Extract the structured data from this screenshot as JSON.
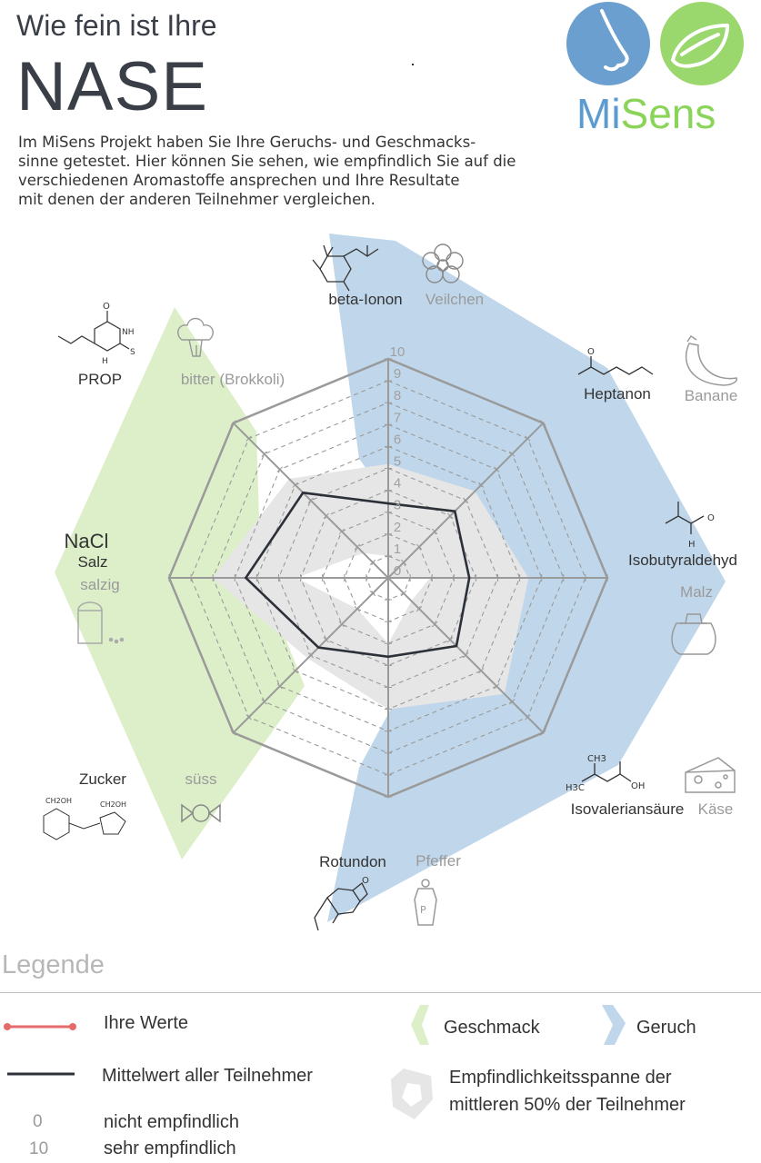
{
  "header": {
    "title_small": "Wie fein ist Ihre",
    "title_big": "NASE",
    "intro_lines": [
      "Im MiSens Projekt haben Sie Ihre Geruchs- und Geschmacks-",
      "sinne getestet. Hier können Sie sehen, wie empfindlich Sie auf die",
      "verschiedenen Aromastoffe ansprechen und Ihre Resultate",
      "mit denen der anderen Teilnehmer vergleichen."
    ]
  },
  "logo": {
    "text_mi": "Mi",
    "text_sens": "Sens",
    "nose_color": "#6a9fcf",
    "tongue_color": "#9ad86e"
  },
  "chart_data": {
    "type": "radar",
    "scale_min": 0,
    "scale_max": 10,
    "tick_labels": [
      "0",
      "1",
      "2",
      "3",
      "4",
      "5",
      "6",
      "7",
      "8",
      "9",
      "10"
    ],
    "axes": [
      {
        "substance": "beta-Ionon",
        "descriptor": "Veilchen",
        "group": "Geruch"
      },
      {
        "substance": "Heptanon",
        "descriptor": "Banane",
        "group": "Geruch"
      },
      {
        "substance": "Isobutyraldehyd",
        "descriptor": "Malz",
        "group": "Geruch"
      },
      {
        "substance": "Isovaleriansäure",
        "descriptor": "Käse",
        "group": "Geruch"
      },
      {
        "substance": "Rotundon",
        "descriptor": "Pfeffer",
        "group": "Geruch"
      },
      {
        "substance": "Zucker",
        "descriptor": "süss",
        "group": "Geschmack"
      },
      {
        "substance": "NaCl",
        "substance2": "Salz",
        "descriptor": "salzig",
        "group": "Geschmack"
      },
      {
        "substance": "PROP",
        "descriptor": "bitter (Brokkoli)",
        "group": "Geschmack"
      }
    ],
    "series": [
      {
        "name": "Mittelwert aller Teilnehmer",
        "values": [
          3.4,
          4.3,
          3.7,
          4.4,
          3.6,
          4.5,
          6.5,
          5.5
        ],
        "color": "#2c3038"
      },
      {
        "name": "Empfindlichkeitsspanne der mittleren 50% der Teilnehmer (oben)",
        "values": [
          5.2,
          5.6,
          6.4,
          7.5,
          6.0,
          5.2,
          8.0,
          6.4
        ],
        "color": "#e6e6e6"
      },
      {
        "name": "Empfindlichkeitsspanne der mittleren 50% der Teilnehmer (unten)",
        "values": [
          1.0,
          0.0,
          1.9,
          1.5,
          3.0,
          2.0,
          4.2,
          1.6
        ],
        "color": "#e6e6e6"
      }
    ],
    "group_colors": {
      "Geschmack": "#dcefc9",
      "Geruch": "#c0d7eb"
    }
  },
  "legend": {
    "title": "Legende",
    "your_values": "Ihre Werte",
    "mean": "Mittelwert aller Teilnehmer",
    "taste": "Geschmack",
    "smell": "Geruch",
    "range_line1": "Empfindlichkeitsspanne der",
    "range_line2": "mittleren 50% der Teilnehmer",
    "zero_num": "0",
    "zero_text": "nicht empfindlich",
    "ten_num": "10",
    "ten_text": "sehr empfindlich",
    "your_values_color": "#e56a6a"
  }
}
